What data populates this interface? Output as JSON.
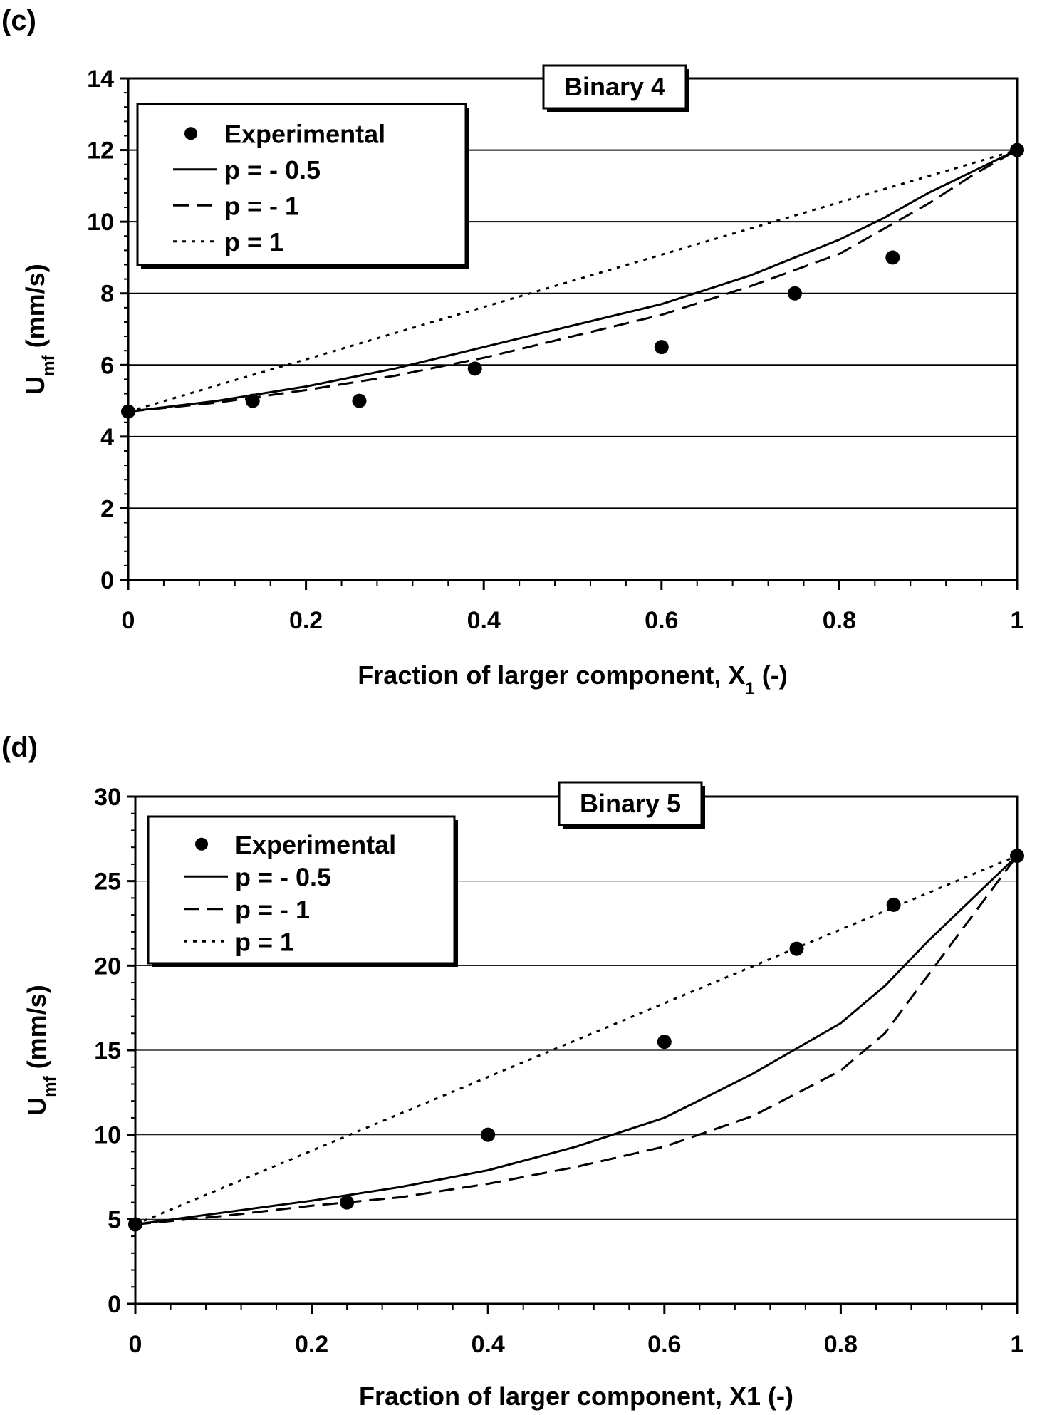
{
  "chart_data": [
    {
      "type": "scatter",
      "panel_label": "(c)",
      "title": "Binary 4",
      "xlabel": "Fraction of larger component, X",
      "xlabel_subscript": "1",
      "xlabel_suffix": "  (-)",
      "ylabel": "U",
      "ylabel_subscript": "mf",
      "ylabel_suffix": "  (mm/s)",
      "xlim": [
        0,
        1
      ],
      "ylim": [
        0,
        14
      ],
      "xticks": [
        0,
        0.2,
        0.4,
        0.6,
        0.8,
        1
      ],
      "xtick_labels": [
        "0",
        "0.2",
        "0.4",
        "0.6",
        "0.8",
        "1"
      ],
      "yticks": [
        0,
        2,
        4,
        6,
        8,
        10,
        12,
        14
      ],
      "ytick_labels": [
        "0",
        "2",
        "4",
        "6",
        "8",
        "10",
        "12",
        "14"
      ],
      "grid": "horizontal",
      "legend_position": "top-left",
      "series": [
        {
          "name": "Experimental",
          "kind": "points",
          "x": [
            0,
            0.14,
            0.26,
            0.39,
            0.6,
            0.75,
            0.86,
            1
          ],
          "y": [
            4.7,
            5.0,
            5.0,
            5.9,
            6.5,
            8.0,
            9.0,
            12.0
          ]
        },
        {
          "name": "p = - 0.5",
          "kind": "line",
          "dash": "solid",
          "x": [
            0,
            0.1,
            0.2,
            0.3,
            0.4,
            0.5,
            0.6,
            0.7,
            0.8,
            0.85,
            0.9,
            0.95,
            1
          ],
          "y": [
            4.7,
            5.0,
            5.4,
            5.9,
            6.5,
            7.1,
            7.7,
            8.5,
            9.5,
            10.1,
            10.8,
            11.4,
            12.0
          ]
        },
        {
          "name": "p = - 1",
          "kind": "line",
          "dash": "dashed",
          "x": [
            0,
            0.1,
            0.2,
            0.3,
            0.4,
            0.5,
            0.6,
            0.7,
            0.8,
            0.85,
            0.9,
            0.95,
            1
          ],
          "y": [
            4.7,
            4.95,
            5.3,
            5.7,
            6.2,
            6.8,
            7.4,
            8.2,
            9.1,
            9.8,
            10.5,
            11.3,
            12.0
          ]
        },
        {
          "name": "p = 1",
          "kind": "line",
          "dash": "dotted",
          "x": [
            0,
            1
          ],
          "y": [
            4.7,
            12.0
          ]
        }
      ]
    },
    {
      "type": "scatter",
      "panel_label": "(d)",
      "title": "Binary 5",
      "xlabel": "Fraction of larger component, X1  (-)",
      "xlabel_subscript": "",
      "xlabel_suffix": "",
      "ylabel": "U",
      "ylabel_subscript": "mf",
      "ylabel_suffix": "  (mm/s)",
      "xlim": [
        0,
        1
      ],
      "ylim": [
        0,
        30
      ],
      "xticks": [
        0,
        0.2,
        0.4,
        0.6,
        0.8,
        1
      ],
      "xtick_labels": [
        "0",
        "0.2",
        "0.4",
        "0.6",
        "0.8",
        "1"
      ],
      "yticks": [
        0,
        5,
        10,
        15,
        20,
        25,
        30
      ],
      "ytick_labels": [
        "0",
        "5",
        "10",
        "15",
        "20",
        "25",
        "30"
      ],
      "grid": "horizontal",
      "legend_position": "top-left",
      "series": [
        {
          "name": "Experimental",
          "kind": "points",
          "x": [
            0,
            0.24,
            0.4,
            0.6,
            0.75,
            0.86,
            1
          ],
          "y": [
            4.7,
            6.0,
            10.0,
            15.5,
            21.0,
            23.6,
            26.5
          ]
        },
        {
          "name": "p = - 0.5",
          "kind": "line",
          "dash": "solid",
          "x": [
            0,
            0.1,
            0.2,
            0.3,
            0.4,
            0.5,
            0.6,
            0.7,
            0.8,
            0.85,
            0.9,
            0.95,
            1
          ],
          "y": [
            4.7,
            5.4,
            6.1,
            6.9,
            7.9,
            9.3,
            11.0,
            13.6,
            16.6,
            18.8,
            21.5,
            24.0,
            26.5
          ]
        },
        {
          "name": "p = - 1",
          "kind": "line",
          "dash": "dashed",
          "x": [
            0,
            0.1,
            0.2,
            0.3,
            0.4,
            0.5,
            0.6,
            0.7,
            0.8,
            0.85,
            0.9,
            0.95,
            1
          ],
          "y": [
            4.7,
            5.2,
            5.8,
            6.3,
            7.1,
            8.1,
            9.3,
            11.1,
            13.8,
            16.0,
            19.5,
            23.0,
            26.5
          ]
        },
        {
          "name": "p = 1",
          "kind": "line",
          "dash": "dotted",
          "x": [
            0,
            1
          ],
          "y": [
            4.7,
            26.5
          ]
        }
      ]
    }
  ]
}
